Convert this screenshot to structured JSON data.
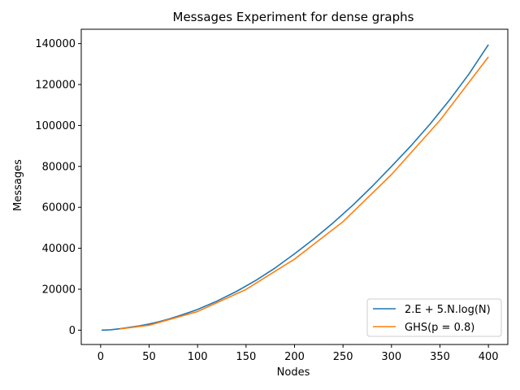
{
  "chart_data": {
    "type": "line",
    "title": "Messages Experiment for dense graphs",
    "xlabel": "Nodes",
    "ylabel": "Messages",
    "xlim": [
      -20,
      420
    ],
    "ylim": [
      -7000,
      147000
    ],
    "xticks": [
      0,
      50,
      100,
      150,
      200,
      250,
      300,
      350,
      400
    ],
    "yticks": [
      0,
      20000,
      40000,
      60000,
      80000,
      100000,
      120000,
      140000
    ],
    "grid": false,
    "legend_position": "lower-right",
    "series": [
      {
        "name": "2.E + 5.N.log(N)",
        "color": "#1f77b4",
        "x": [
          1,
          10,
          20,
          30,
          40,
          50,
          60,
          70,
          80,
          90,
          100,
          120,
          140,
          160,
          180,
          200,
          220,
          240,
          260,
          280,
          300,
          320,
          340,
          360,
          380,
          400
        ],
        "y": [
          0,
          180,
          700,
          1400,
          2100,
          3000,
          4100,
          5400,
          6900,
          8500,
          10100,
          14200,
          18900,
          24300,
          30400,
          37300,
          44600,
          52500,
          61000,
          70200,
          80000,
          90000,
          100800,
          112500,
          125200,
          139500
        ]
      },
      {
        "name": "GHS(p = 0.8)",
        "color": "#ff7f0e",
        "x": [
          20,
          50,
          100,
          150,
          200,
          250,
          300,
          350,
          400
        ],
        "y": [
          600,
          2400,
          9100,
          19900,
          34700,
          53000,
          76000,
          102500,
          133500
        ]
      }
    ]
  }
}
